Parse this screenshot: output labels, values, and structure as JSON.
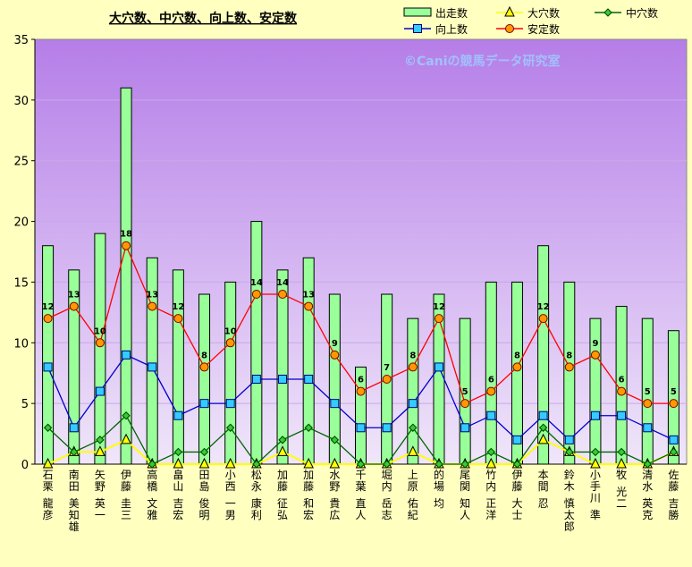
{
  "chart_data": {
    "type": "bar",
    "title": "大穴数、中穴数、向上数、安定数",
    "watermark": "©Caniの競馬データ研究室",
    "categories": [
      "石栗 龍彦",
      "南田 美知雄",
      "矢野 英一",
      "伊藤 圭三",
      "高橋 文雅",
      "畠山 吉宏",
      "田島 俊明",
      "小西 一男",
      "松永 康利",
      "加藤 征弘",
      "加藤 和宏",
      "水野 貴広",
      "千葉 直人",
      "堀内 岳志",
      "上原 佑紀",
      "的場 均",
      "尾関 知人",
      "竹内 正洋",
      "伊藤 大士",
      "本間 忍",
      "鈴木 慎太郎",
      "小手川 準",
      "牧 光二",
      "清水 英克",
      "佐藤 吉勝"
    ],
    "ylim": [
      0,
      35
    ],
    "yticks": [
      0,
      5,
      10,
      15,
      20,
      25,
      30,
      35
    ],
    "grid": true,
    "legend_placement": "top-right",
    "series": [
      {
        "name": "出走数",
        "kind": "bar",
        "color": "#99ff99",
        "values": [
          18,
          16,
          19,
          31,
          17,
          16,
          14,
          15,
          20,
          16,
          17,
          14,
          8,
          14,
          12,
          14,
          12,
          15,
          15,
          18,
          15,
          12,
          13,
          12,
          11
        ]
      },
      {
        "name": "大穴数",
        "kind": "line",
        "color": "#ffff00",
        "values": [
          0,
          1,
          1,
          2,
          0,
          0,
          0,
          0,
          0,
          1,
          0,
          0,
          0,
          0,
          1,
          0,
          0,
          0,
          0,
          2,
          1,
          0,
          0,
          0,
          1
        ]
      },
      {
        "name": "中穴数",
        "kind": "line",
        "color": "#006600",
        "values": [
          3,
          1,
          2,
          4,
          0,
          1,
          1,
          3,
          0,
          2,
          3,
          2,
          0,
          0,
          3,
          0,
          0,
          1,
          0,
          3,
          1,
          1,
          1,
          0,
          1
        ]
      },
      {
        "name": "向上数",
        "kind": "line",
        "color": "#0000cc",
        "values": [
          8,
          3,
          6,
          9,
          8,
          4,
          5,
          5,
          7,
          7,
          7,
          5,
          3,
          3,
          5,
          8,
          3,
          4,
          2,
          4,
          2,
          4,
          4,
          3,
          2
        ]
      },
      {
        "name": "安定数",
        "kind": "line",
        "color": "#ff0000",
        "values": [
          12,
          13,
          10,
          18,
          13,
          12,
          8,
          10,
          14,
          14,
          13,
          9,
          6,
          7,
          8,
          12,
          5,
          6,
          8,
          12,
          8,
          9,
          6,
          5,
          5
        ]
      }
    ]
  }
}
